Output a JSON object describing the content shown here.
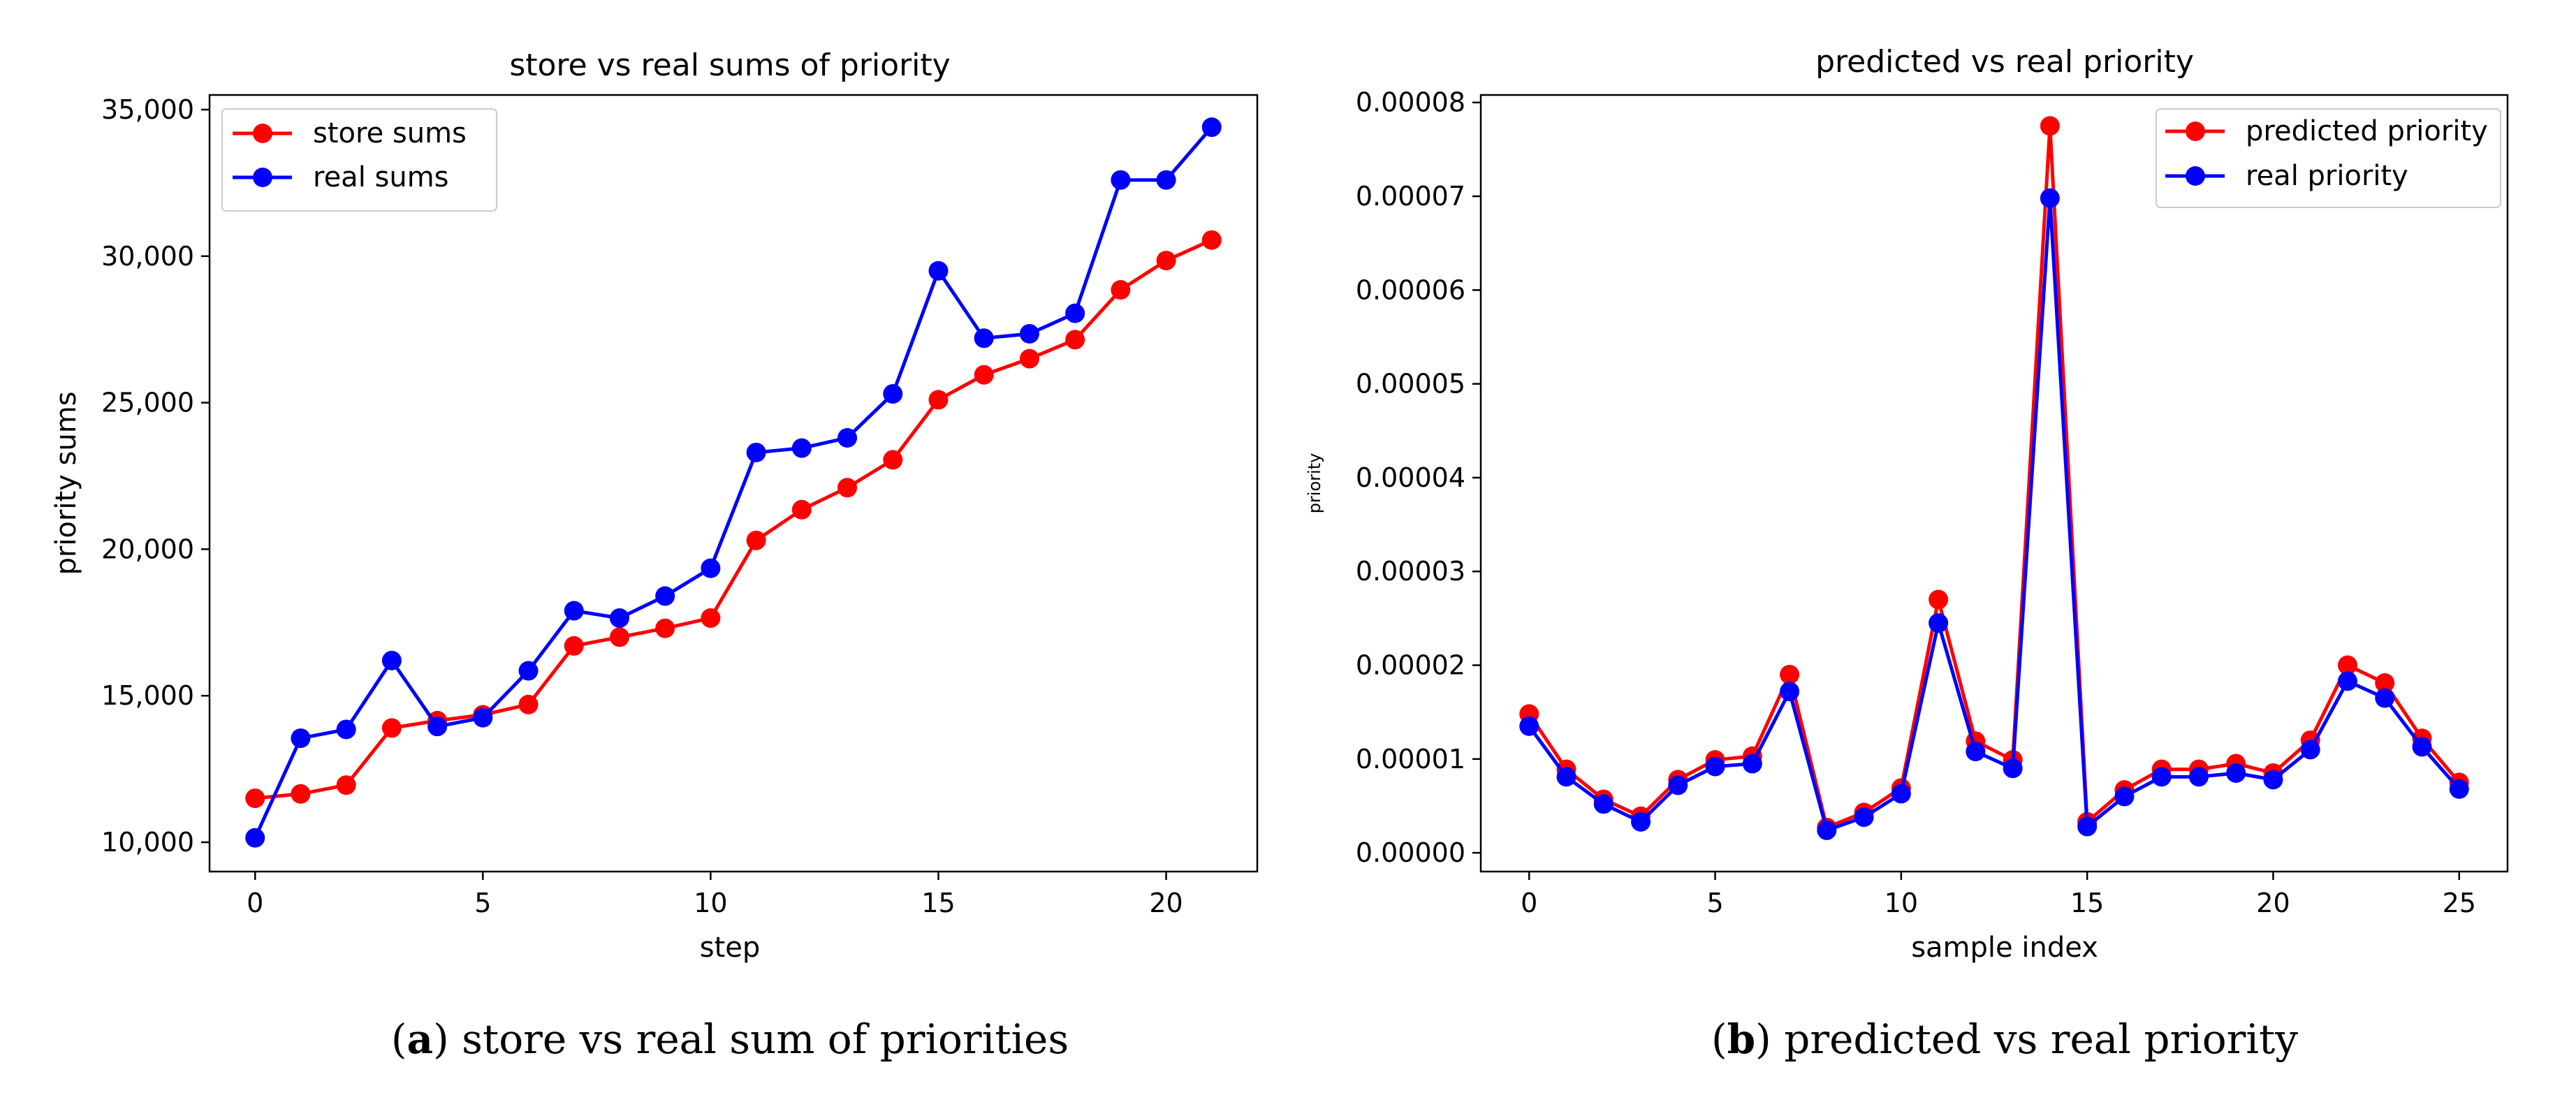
{
  "chart_data": [
    {
      "type": "line",
      "panel_label": "a",
      "caption": "store vs real sum of priorities",
      "title": "store vs real sums of priority",
      "xlabel": "step",
      "ylabel": "priority sums",
      "xlim": [
        -1,
        22
      ],
      "ylim": [
        9000,
        35500
      ],
      "xticks": [
        0,
        5,
        10,
        15,
        20
      ],
      "yticks": [
        10000,
        15000,
        20000,
        25000,
        30000,
        35000
      ],
      "ytick_labels": [
        "10,000",
        "15,000",
        "20,000",
        "25,000",
        "30,000",
        "35,000"
      ],
      "legend_position": "top-left",
      "x": [
        0,
        1,
        2,
        3,
        4,
        5,
        6,
        7,
        8,
        9,
        10,
        11,
        12,
        13,
        14,
        15,
        16,
        17,
        18,
        19,
        20,
        21
      ],
      "series": [
        {
          "name": "store sums",
          "color": "#ff0000",
          "values": [
            11500,
            11650,
            11950,
            13900,
            14150,
            14350,
            14700,
            16700,
            17000,
            17300,
            17650,
            20300,
            21350,
            22100,
            23050,
            25100,
            25950,
            26500,
            27150,
            28850,
            29850,
            30550
          ]
        },
        {
          "name": "real sums",
          "color": "#0000ff",
          "values": [
            10150,
            13550,
            13850,
            16200,
            13950,
            14250,
            15850,
            17900,
            17650,
            18400,
            19350,
            23300,
            23450,
            23800,
            25300,
            29500,
            27200,
            27350,
            28050,
            32600,
            32600,
            34400
          ]
        }
      ]
    },
    {
      "type": "line",
      "panel_label": "b",
      "caption": "predicted vs real priority",
      "title": "predicted vs real priority",
      "xlabel": "sample index",
      "ylabel": "priority",
      "xlim": [
        -1.3,
        26.3
      ],
      "ylim": [
        -2e-06,
        8.08e-05
      ],
      "xticks": [
        0,
        5,
        10,
        15,
        20,
        25
      ],
      "yticks": [
        0,
        1e-05,
        2e-05,
        3e-05,
        4e-05,
        5e-05,
        6e-05,
        7e-05,
        8e-05
      ],
      "ytick_labels": [
        "0.00000",
        "0.00001",
        "0.00002",
        "0.00003",
        "0.00004",
        "0.00005",
        "0.00006",
        "0.00007",
        "0.00008"
      ],
      "legend_position": "top-right",
      "x": [
        0,
        1,
        2,
        3,
        4,
        5,
        6,
        7,
        8,
        9,
        10,
        11,
        12,
        13,
        14,
        15,
        16,
        17,
        18,
        19,
        20,
        21,
        22,
        23,
        24,
        25
      ],
      "series": [
        {
          "name": "predicted priority",
          "color": "#ff0000",
          "values": [
            1.48e-05,
            8.9e-06,
            5.7e-06,
            3.9e-06,
            7.8e-06,
            9.9e-06,
            1.03e-05,
            1.9e-05,
            2.7e-06,
            4.3e-06,
            6.9e-06,
            2.7e-05,
            1.19e-05,
            9.9e-06,
            7.75e-05,
            3.3e-06,
            6.7e-06,
            8.9e-06,
            8.9e-06,
            9.5e-06,
            8.5e-06,
            1.2e-05,
            2e-05,
            1.81e-05,
            1.22e-05,
            7.5e-06
          ]
        },
        {
          "name": "real priority",
          "color": "#0000ff",
          "values": [
            1.35e-05,
            8.1e-06,
            5.2e-06,
            3.3e-06,
            7.2e-06,
            9.2e-06,
            9.5e-06,
            1.72e-05,
            2.4e-06,
            3.8e-06,
            6.3e-06,
            2.45e-05,
            1.08e-05,
            9e-06,
            6.98e-05,
            2.8e-06,
            6e-06,
            8.1e-06,
            8.1e-06,
            8.5e-06,
            7.8e-06,
            1.1e-05,
            1.83e-05,
            1.65e-05,
            1.13e-05,
            6.8e-06
          ]
        }
      ]
    }
  ]
}
